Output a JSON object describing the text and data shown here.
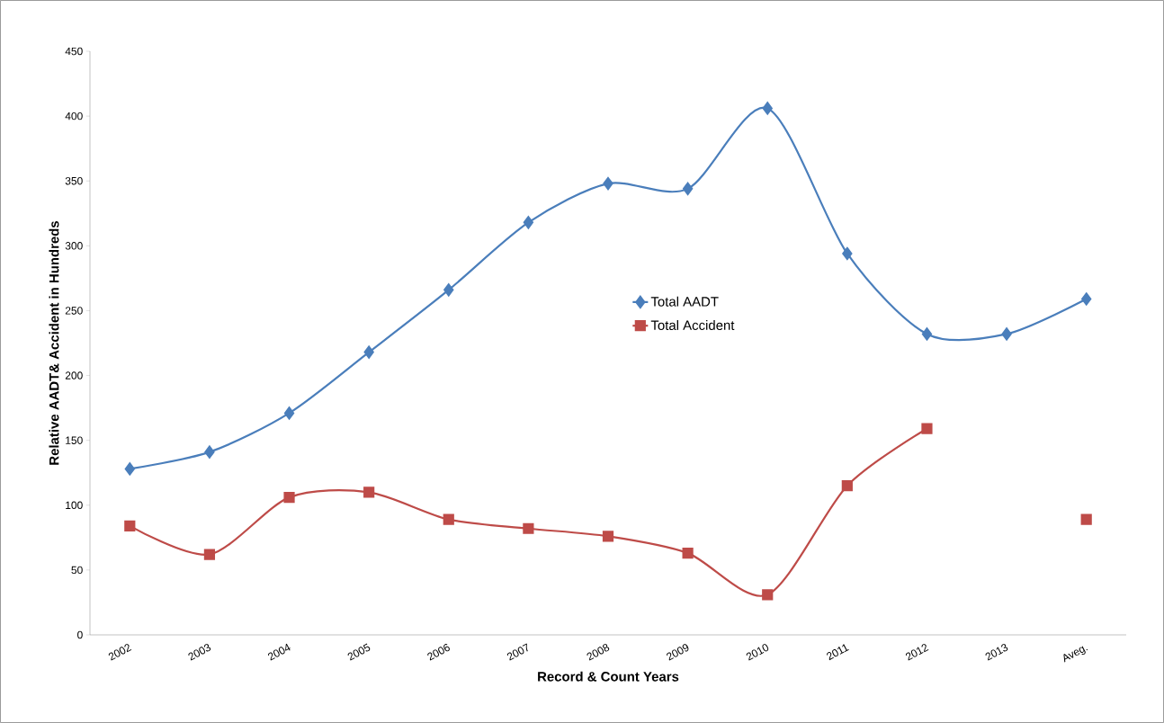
{
  "chart_data": {
    "type": "line",
    "xlabel": "Record & Count Years",
    "ylabel": "Relative AADT& Accident in Hundreds",
    "categories": [
      "2002",
      "2003",
      "2004",
      "2005",
      "2006",
      "2007",
      "2008",
      "2009",
      "2010",
      "2011",
      "2012",
      "2013",
      "Aveg."
    ],
    "series": [
      {
        "name": "Total AADT",
        "color": "#4a7ebb",
        "marker": "diamond",
        "values": [
          128,
          141,
          171,
          218,
          266,
          318,
          348,
          344,
          406,
          294,
          232,
          232,
          259
        ]
      },
      {
        "name": "Total Accident",
        "color": "#be4b48",
        "marker": "square",
        "values": [
          84,
          62,
          106,
          110,
          89,
          82,
          76,
          63,
          31,
          115,
          159,
          null,
          89
        ]
      }
    ],
    "ylim": [
      0,
      450
    ],
    "yticks": [
      0,
      50,
      100,
      150,
      200,
      250,
      300,
      350,
      400,
      450
    ],
    "grid": false,
    "legend": "center"
  }
}
